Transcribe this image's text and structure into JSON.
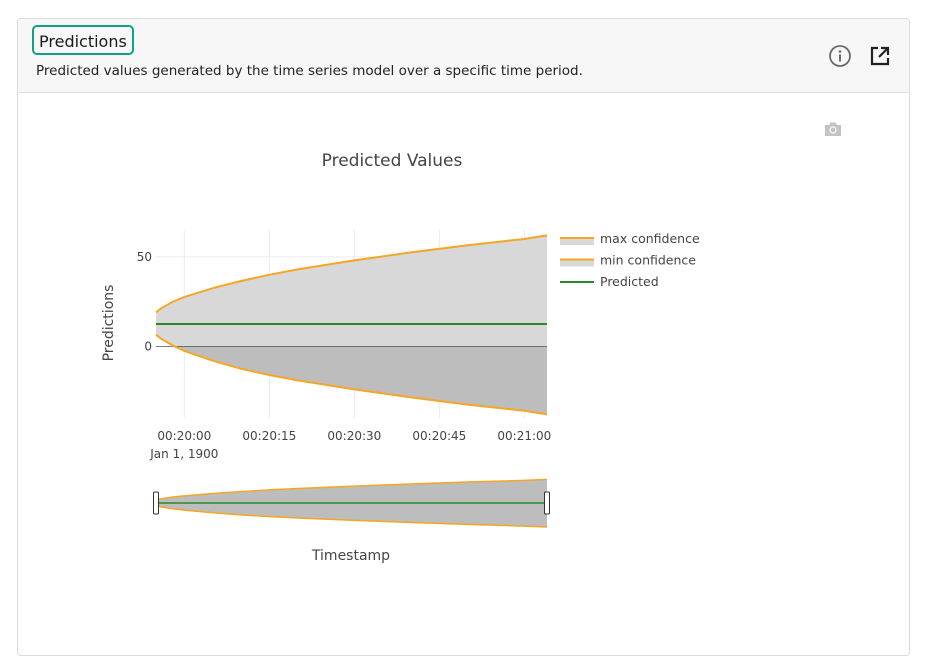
{
  "card": {
    "title": "Predictions",
    "subtitle": "Predicted values generated by the time series model over a specific time period."
  },
  "icons": {
    "info": "info-icon",
    "open_external": "open-external-icon",
    "camera": "camera-icon"
  },
  "colors": {
    "confidence_line": "#f5a623",
    "predicted_line": "#2a8a2a",
    "upper_band_fill": "#d8d8d8",
    "lower_band_fill": "#bdbdbd",
    "title_border": "#14a085"
  },
  "chart_data": {
    "type": "area",
    "title": "Predicted Values",
    "xlabel": "Timestamp",
    "ylabel": "Predictions",
    "x_ticks": [
      "00:20:00",
      "00:20:15",
      "00:20:30",
      "00:20:45",
      "00:21:00"
    ],
    "x_tick_sublabel": "Jan 1, 1900",
    "x_tick_values": [
      0,
      15,
      30,
      45,
      60
    ],
    "xlim": [
      -5,
      64
    ],
    "y_ticks": [
      0,
      50
    ],
    "ylim": [
      -40,
      65
    ],
    "grid": true,
    "legend_position": "right",
    "range_slider": true,
    "series": [
      {
        "name": "max confidence",
        "x": [
          -5,
          -4,
          -2,
          0,
          5,
          10,
          15,
          20,
          30,
          40,
          50,
          60,
          64
        ],
        "values": [
          19,
          21.5,
          25,
          27.5,
          32.5,
          36.5,
          40,
          43,
          48,
          52.5,
          56.5,
          60,
          62
        ]
      },
      {
        "name": "min confidence",
        "x": [
          -5,
          -4,
          -2,
          0,
          5,
          10,
          15,
          20,
          30,
          40,
          50,
          60,
          64
        ],
        "values": [
          6.5,
          4,
          0.5,
          -2.5,
          -8,
          -12.5,
          -16,
          -19,
          -24,
          -28.5,
          -32.5,
          -36,
          -38
        ]
      },
      {
        "name": "Predicted",
        "x": [
          -5,
          64
        ],
        "values": [
          12.5,
          12.5
        ]
      }
    ]
  }
}
